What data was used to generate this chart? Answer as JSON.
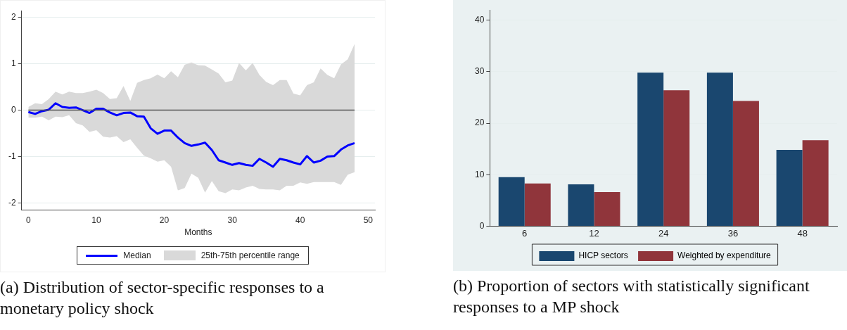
{
  "chart_data": [
    {
      "type": "line",
      "xlabel": "Months",
      "x": [
        0,
        1,
        2,
        3,
        4,
        5,
        6,
        7,
        8,
        9,
        10,
        11,
        12,
        13,
        14,
        15,
        16,
        17,
        18,
        19,
        20,
        21,
        22,
        23,
        24,
        25,
        26,
        27,
        28,
        29,
        30,
        31,
        32,
        33,
        34,
        35,
        36,
        37,
        38,
        39,
        40,
        41,
        42,
        43,
        44,
        45,
        46,
        47,
        48
      ],
      "series": [
        {
          "name": "Median",
          "type": "line",
          "color": "#0000ff",
          "values": [
            -0.04,
            -0.08,
            -0.02,
            0.01,
            0.15,
            0.07,
            0.05,
            0.06,
            0,
            -0.06,
            0.03,
            0.03,
            -0.05,
            -0.11,
            -0.06,
            -0.05,
            -0.13,
            -0.14,
            -0.39,
            -0.51,
            -0.44,
            -0.44,
            -0.59,
            -0.71,
            -0.77,
            -0.74,
            -0.7,
            -0.86,
            -1.08,
            -1.13,
            -1.18,
            -1.14,
            -1.18,
            -1.2,
            -1.05,
            -1.13,
            -1.22,
            -1.05,
            -1.08,
            -1.13,
            -1.17,
            -0.99,
            -1.13,
            -1.09,
            -1,
            -0.99,
            -0.85,
            -0.76,
            -0.71
          ],
          "lower": [
            -0.16,
            -0.16,
            -0.14,
            -0.22,
            -0.14,
            -0.15,
            -0.11,
            -0.28,
            -0.33,
            -0.47,
            -0.43,
            -0.57,
            -0.59,
            -0.56,
            -0.69,
            -0.63,
            -0.81,
            -0.98,
            -1.04,
            -1.11,
            -1.08,
            -1.22,
            -1.73,
            -1.68,
            -1.37,
            -1.46,
            -1.78,
            -1.53,
            -1.75,
            -1.79,
            -1.71,
            -1.73,
            -1.67,
            -1.63,
            -1.7,
            -1.71,
            -1.71,
            -1.73,
            -1.63,
            -1.63,
            -1.56,
            -1.59,
            -1.55,
            -1.55,
            -1.55,
            -1.55,
            -1.61,
            -1.39,
            -1.34
          ],
          "upper": [
            0.07,
            0.15,
            0.13,
            0.24,
            0.4,
            0.34,
            0.4,
            0.37,
            0.37,
            0.4,
            0.44,
            0.37,
            0.24,
            0.26,
            0.52,
            0.2,
            0.59,
            0.65,
            0.69,
            0.77,
            0.69,
            0.84,
            0.71,
            0.98,
            1.03,
            0.97,
            0.96,
            0.88,
            0.79,
            0.6,
            0.64,
            1.02,
            0.86,
            1.02,
            0.76,
            0.61,
            0.54,
            0.65,
            0.65,
            0.36,
            0.32,
            0.54,
            0.6,
            0.9,
            0.76,
            0.69,
            0.99,
            1.1,
            1.43
          ]
        }
      ],
      "xlim": [
        -1,
        51
      ],
      "xticks": [
        0,
        10,
        20,
        30,
        40,
        50
      ],
      "ylim": [
        -2.15,
        2.15
      ],
      "yticks": [
        -2,
        -1,
        0,
        1,
        2
      ],
      "grid": "y",
      "legend": "bottom",
      "marker": "none",
      "line_style": "solid",
      "ref_lines": [
        {
          "axis": "y",
          "value": 0,
          "color": "#555555"
        }
      ],
      "annotations": [
        "25th-75th percentile range",
        "(a) Distribution of sector-specific responses to a monetary policy shock"
      ]
    },
    {
      "type": "bar",
      "categories": [
        "6",
        "12",
        "24",
        "36",
        "48"
      ],
      "series": [
        {
          "name": "HICP sectors",
          "color": "#1a476f",
          "values": [
            9.5,
            8.1,
            29.8,
            29.8,
            14.8
          ]
        },
        {
          "name": "Weighted by expenditure",
          "color": "#90353b",
          "values": [
            8.3,
            6.6,
            26.4,
            24.3,
            16.7
          ]
        }
      ],
      "ylim": [
        0,
        42
      ],
      "yticks": [
        0,
        10,
        20,
        30,
        40
      ],
      "grid": "y",
      "legend": "bottom",
      "annotations": [
        "(b) Proportion of sectors with statistically significant responses to a MP shock"
      ]
    }
  ]
}
